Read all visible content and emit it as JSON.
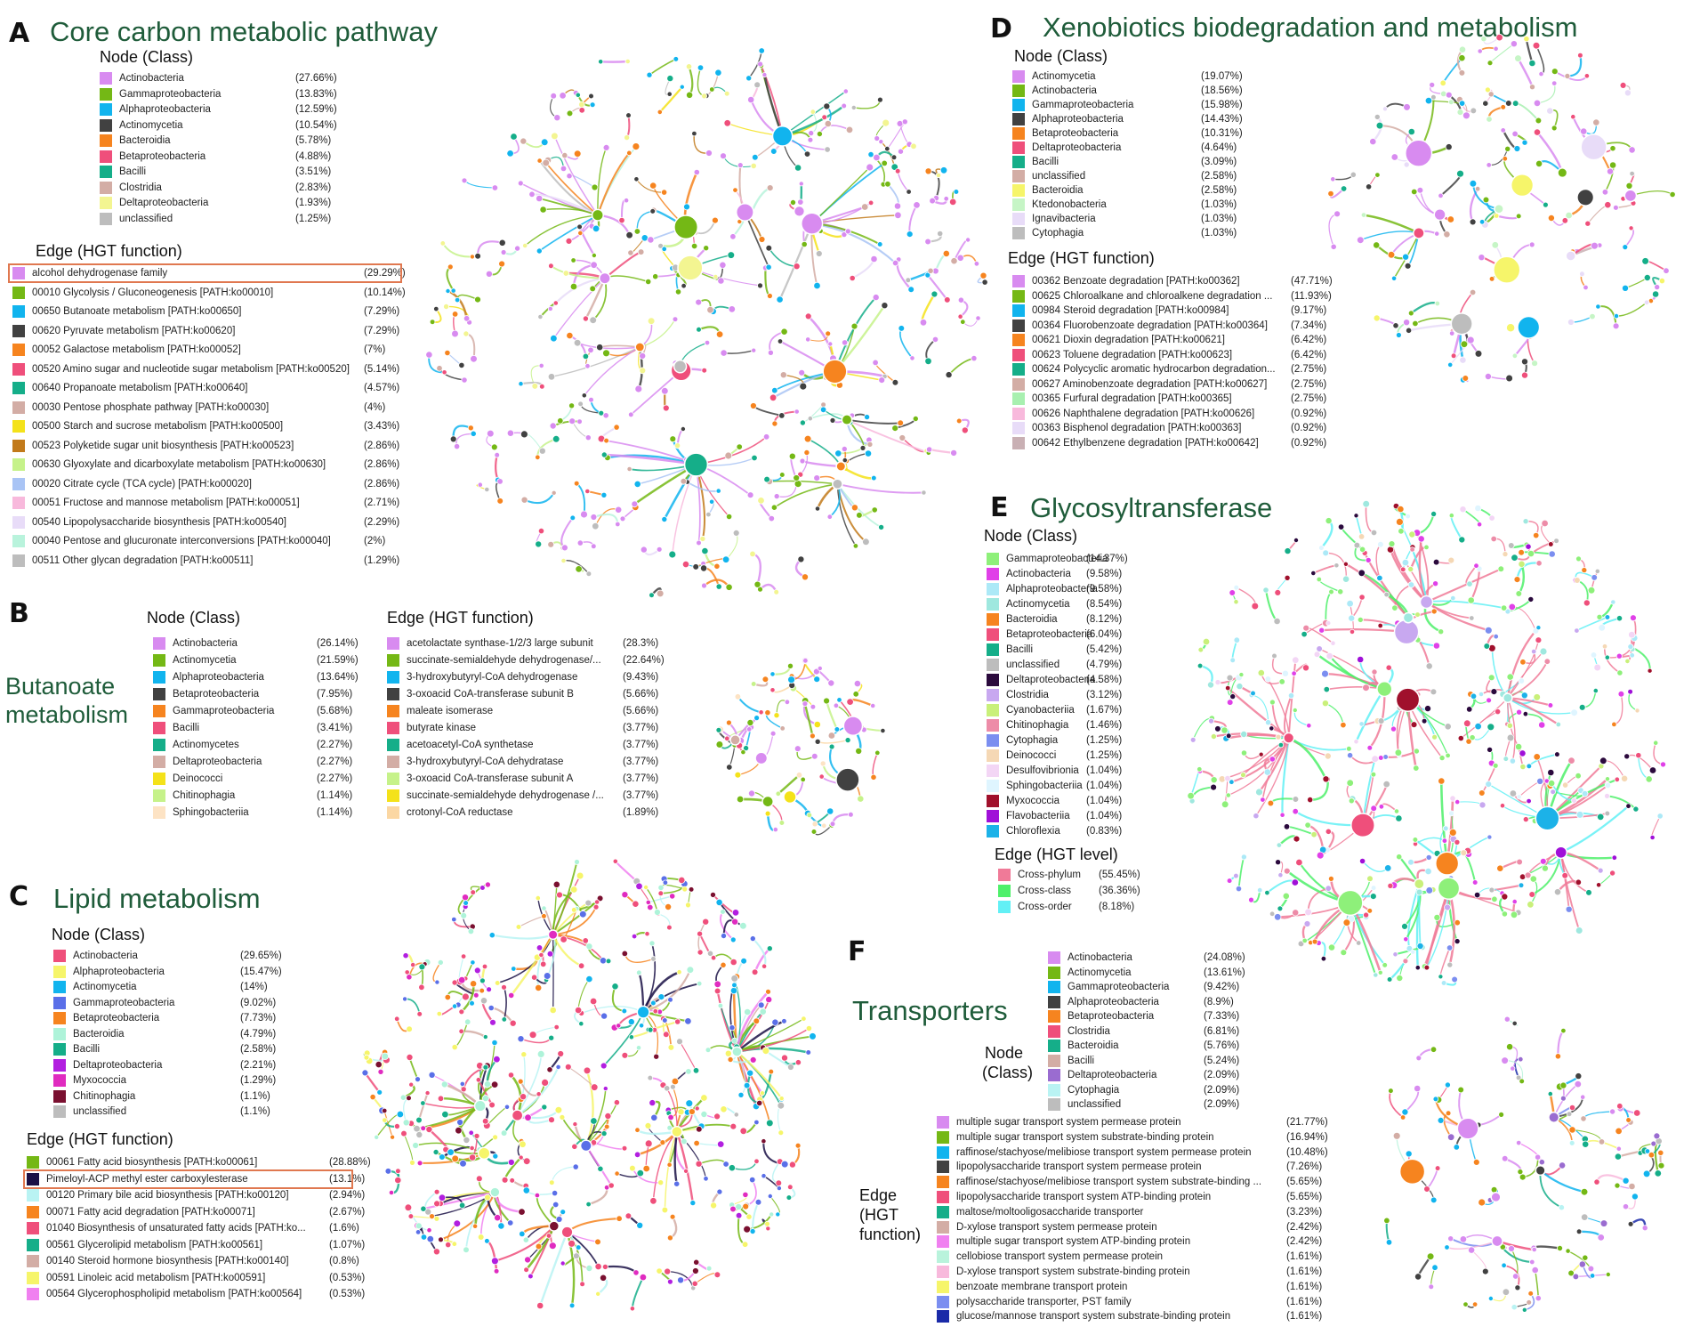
{
  "panels": {
    "A": {
      "letter": "A",
      "title": "Core carbon metabolic pathway",
      "node_head": "Node (Class)",
      "edge_head": "Edge (HGT function)",
      "nodes": [
        {
          "label": "Actinobacteria",
          "pct": "(27.66%)",
          "color": "#d88bf0"
        },
        {
          "label": "Gammaproteobacteria",
          "pct": "(13.83%)",
          "color": "#74b815"
        },
        {
          "label": "Alphaproteobacteria",
          "pct": "(12.59%)",
          "color": "#11b4ee"
        },
        {
          "label": "Actinomycetia",
          "pct": "(10.54%)",
          "color": "#414141"
        },
        {
          "label": "Bacteroidia",
          "pct": "(5.78%)",
          "color": "#f6841f"
        },
        {
          "label": "Betaproteobacteria",
          "pct": "(4.88%)",
          "color": "#ef4f7b"
        },
        {
          "label": "Bacilli",
          "pct": "(3.51%)",
          "color": "#15ae89"
        },
        {
          "label": "Clostridia",
          "pct": "(2.83%)",
          "color": "#d3ada5"
        },
        {
          "label": "Deltaproteobacteria",
          "pct": "(1.93%)",
          "color": "#f3f591"
        },
        {
          "label": "unclassified",
          "pct": "(1.25%)",
          "color": "#bdbdbd"
        }
      ],
      "edges": [
        {
          "label": "alcohol dehydrogenase family",
          "pct": "(29.29%)",
          "color": "#d88bf0"
        },
        {
          "label": "00010 Glycolysis / Gluconeogenesis [PATH:ko00010]",
          "pct": "(10.14%)",
          "color": "#74b815"
        },
        {
          "label": "00650 Butanoate metabolism [PATH:ko00650]",
          "pct": "(7.29%)",
          "color": "#11b4ee"
        },
        {
          "label": "00620 Pyruvate metabolism [PATH:ko00620]",
          "pct": "(7.29%)",
          "color": "#414141"
        },
        {
          "label": "00052 Galactose metabolism [PATH:ko00052]",
          "pct": "(7%)",
          "color": "#f6841f"
        },
        {
          "label": "00520 Amino sugar and nucleotide sugar metabolism [PATH:ko00520]",
          "pct": "(5.14%)",
          "color": "#ef4f7b"
        },
        {
          "label": "00640 Propanoate metabolism [PATH:ko00640]",
          "pct": "(4.57%)",
          "color": "#15ae89"
        },
        {
          "label": "00030 Pentose phosphate pathway [PATH:ko00030]",
          "pct": "(4%)",
          "color": "#d3ada5"
        },
        {
          "label": "00500 Starch and sucrose metabolism [PATH:ko00500]",
          "pct": "(3.43%)",
          "color": "#f4e21a"
        },
        {
          "label": "00523 Polyketide sugar unit biosynthesis [PATH:ko00523]",
          "pct": "(2.86%)",
          "color": "#c27a1b"
        },
        {
          "label": "00630 Glyoxylate and dicarboxylate metabolism [PATH:ko00630]",
          "pct": "(2.86%)",
          "color": "#c6f28a"
        },
        {
          "label": "00020 Citrate cycle (TCA cycle) [PATH:ko00020]",
          "pct": "(2.86%)",
          "color": "#a9c4f5"
        },
        {
          "label": "00051 Fructose and mannose metabolism [PATH:ko00051]",
          "pct": "(2.71%)",
          "color": "#f8b9dc"
        },
        {
          "label": "00540 Lipopolysaccharide biosynthesis [PATH:ko00540]",
          "pct": "(2.29%)",
          "color": "#e8dcf8"
        },
        {
          "label": "00040 Pentose and glucuronate interconversions [PATH:ko00040]",
          "pct": "(2%)",
          "color": "#b9f3dc"
        },
        {
          "label": "00511 Other glycan degradation [PATH:ko00511]",
          "pct": "(1.29%)",
          "color": "#bdbdbd"
        }
      ]
    },
    "B": {
      "letter": "B",
      "title": "Butanoate metabolism",
      "title_line1": "Butanoate",
      "title_line2": "metabolism",
      "node_head": "Node (Class)",
      "edge_head": "Edge (HGT function)",
      "nodes": [
        {
          "label": "Actinobacteria",
          "pct": "(26.14%)",
          "color": "#d88bf0"
        },
        {
          "label": "Actinomycetia",
          "pct": "(21.59%)",
          "color": "#74b815"
        },
        {
          "label": "Alphaproteobacteria",
          "pct": "(13.64%)",
          "color": "#11b4ee"
        },
        {
          "label": "Betaproteobacteria",
          "pct": "(7.95%)",
          "color": "#414141"
        },
        {
          "label": "Gammaproteobacteria",
          "pct": "(5.68%)",
          "color": "#f6841f"
        },
        {
          "label": "Bacilli",
          "pct": "(3.41%)",
          "color": "#ef4f7b"
        },
        {
          "label": "Actinomycetes",
          "pct": "(2.27%)",
          "color": "#15ae89"
        },
        {
          "label": "Deltaproteobacteria",
          "pct": "(2.27%)",
          "color": "#d3ada5"
        },
        {
          "label": "Deinococci",
          "pct": "(2.27%)",
          "color": "#f4e21a"
        },
        {
          "label": "Chitinophagia",
          "pct": "(1.14%)",
          "color": "#c6f28a"
        },
        {
          "label": "Sphingobacteriia",
          "pct": "(1.14%)",
          "color": "#fde3c4"
        }
      ],
      "edges": [
        {
          "label": "acetolactate synthase-1/2/3 large subunit",
          "pct": "(28.3%)",
          "color": "#d88bf0"
        },
        {
          "label": "succinate-semialdehyde dehydrogenase/...",
          "pct": "(22.64%)",
          "color": "#74b815"
        },
        {
          "label": "3-hydroxybutyryl-CoA dehydrogenase",
          "pct": "(9.43%)",
          "color": "#11b4ee"
        },
        {
          "label": "3-oxoacid CoA-transferase subunit B",
          "pct": "(5.66%)",
          "color": "#414141"
        },
        {
          "label": "maleate isomerase",
          "pct": "(5.66%)",
          "color": "#f6841f"
        },
        {
          "label": "butyrate kinase",
          "pct": "(3.77%)",
          "color": "#ef4f7b"
        },
        {
          "label": "acetoacetyl-CoA synthetase",
          "pct": "(3.77%)",
          "color": "#15ae89"
        },
        {
          "label": "3-hydroxybutyryl-CoA dehydratase",
          "pct": "(3.77%)",
          "color": "#d3ada5"
        },
        {
          "label": "3-oxoacid CoA-transferase subunit A",
          "pct": "(3.77%)",
          "color": "#c6f28a"
        },
        {
          "label": "succinate-semialdehyde dehydrogenase /...",
          "pct": "(3.77%)",
          "color": "#f4e21a"
        },
        {
          "label": "crotonyl-CoA reductase",
          "pct": "(1.89%)",
          "color": "#fbd7a3"
        }
      ]
    },
    "C": {
      "letter": "C",
      "title": "Lipid metabolism",
      "node_head": "Node (Class)",
      "edge_head": "Edge (HGT function)",
      "nodes": [
        {
          "label": "Actinobacteria",
          "pct": "(29.65%)",
          "color": "#ef4f7b"
        },
        {
          "label": "Alphaproteobacteria",
          "pct": "(15.47%)",
          "color": "#f6f56a"
        },
        {
          "label": "Actinomycetia",
          "pct": "(14%)",
          "color": "#11b4ee"
        },
        {
          "label": "Gammaproteobacteria",
          "pct": "(9.02%)",
          "color": "#5a6fe8"
        },
        {
          "label": "Betaproteobacteria",
          "pct": "(7.73%)",
          "color": "#f6841f"
        },
        {
          "label": "Bacteroidia",
          "pct": "(4.79%)",
          "color": "#aef3d9"
        },
        {
          "label": "Bacilli",
          "pct": "(2.58%)",
          "color": "#15ae89"
        },
        {
          "label": "Deltaproteobacteria",
          "pct": "(2.21%)",
          "color": "#b21fe0"
        },
        {
          "label": "Myxococcia",
          "pct": "(1.29%)",
          "color": "#e02bc0"
        },
        {
          "label": "Chitinophagia",
          "pct": "(1.1%)",
          "color": "#7a1030"
        },
        {
          "label": "unclassified",
          "pct": "(1.1%)",
          "color": "#bdbdbd"
        }
      ],
      "edges": [
        {
          "label": "00061 Fatty acid biosynthesis [PATH:ko00061]",
          "pct": "(28.88%)",
          "color": "#74b815"
        },
        {
          "label": "Pimeloyl-ACP methyl ester carboxylesterase",
          "pct": "(13.1%)",
          "color": "#1a1045"
        },
        {
          "label": "00120 Primary bile acid biosynthesis [PATH:ko00120]",
          "pct": "(2.94%)",
          "color": "#b9f3f3"
        },
        {
          "label": "00071 Fatty acid degradation [PATH:ko00071]",
          "pct": "(2.67%)",
          "color": "#f6841f"
        },
        {
          "label": "01040 Biosynthesis of unsaturated fatty acids [PATH:ko...",
          "pct": "(1.6%)",
          "color": "#ef4f7b"
        },
        {
          "label": "00561 Glycerolipid metabolism [PATH:ko00561]",
          "pct": "(1.07%)",
          "color": "#15ae89"
        },
        {
          "label": "00140 Steroid hormone biosynthesis [PATH:ko00140]",
          "pct": "(0.8%)",
          "color": "#d3ada5"
        },
        {
          "label": "00591 Linoleic acid metabolism [PATH:ko00591]",
          "pct": "(0.53%)",
          "color": "#f6f56a"
        },
        {
          "label": "00564 Glycerophospholipid metabolism [PATH:ko00564]",
          "pct": "(0.53%)",
          "color": "#f080f0"
        }
      ]
    },
    "D": {
      "letter": "D",
      "title": "Xenobiotics biodegradation and metabolism",
      "node_head": "Node (Class)",
      "edge_head": "Edge (HGT function)",
      "nodes": [
        {
          "label": "Actinomycetia",
          "pct": "(19.07%)",
          "color": "#d88bf0"
        },
        {
          "label": "Actinobacteria",
          "pct": "(18.56%)",
          "color": "#74b815"
        },
        {
          "label": "Gammaproteobacteria",
          "pct": "(15.98%)",
          "color": "#11b4ee"
        },
        {
          "label": "Alphaproteobacteria",
          "pct": "(14.43%)",
          "color": "#414141"
        },
        {
          "label": "Betaproteobacteria",
          "pct": "(10.31%)",
          "color": "#f6841f"
        },
        {
          "label": "Deltaproteobacteria",
          "pct": "(4.64%)",
          "color": "#ef4f7b"
        },
        {
          "label": "Bacilli",
          "pct": "(3.09%)",
          "color": "#15ae89"
        },
        {
          "label": "unclassified",
          "pct": "(2.58%)",
          "color": "#d3ada5"
        },
        {
          "label": "Bacteroidia",
          "pct": "(2.58%)",
          "color": "#f6f56a"
        },
        {
          "label": "Ktedonobacteria",
          "pct": "(1.03%)",
          "color": "#c6f5c6"
        },
        {
          "label": "Ignavibacteria",
          "pct": "(1.03%)",
          "color": "#e8dcf8"
        },
        {
          "label": "Cytophagia",
          "pct": "(1.03%)",
          "color": "#bdbdbd"
        }
      ],
      "edges": [
        {
          "label": "00362 Benzoate degradation [PATH:ko00362]",
          "pct": "(47.71%)",
          "color": "#d88bf0"
        },
        {
          "label": "00625 Chloroalkane and chloroalkene degradation ...",
          "pct": "(11.93%)",
          "color": "#74b815"
        },
        {
          "label": "00984 Steroid degradation [PATH:ko00984]",
          "pct": "(9.17%)",
          "color": "#11b4ee"
        },
        {
          "label": "00364 Fluorobenzoate degradation [PATH:ko00364]",
          "pct": "(7.34%)",
          "color": "#414141"
        },
        {
          "label": "00621 Dioxin degradation [PATH:ko00621]",
          "pct": "(6.42%)",
          "color": "#f6841f"
        },
        {
          "label": "00623 Toluene degradation [PATH:ko00623]",
          "pct": "(6.42%)",
          "color": "#ef4f7b"
        },
        {
          "label": "00624 Polycyclic aromatic hydrocarbon degradation...",
          "pct": "(2.75%)",
          "color": "#15ae89"
        },
        {
          "label": "00627 Aminobenzoate degradation [PATH:ko00627]",
          "pct": "(2.75%)",
          "color": "#d3ada5"
        },
        {
          "label": "00365 Furfural degradation [PATH:ko00365]",
          "pct": "(2.75%)",
          "color": "#a8f0b0"
        },
        {
          "label": "00626 Naphthalene degradation [PATH:ko00626]",
          "pct": "(0.92%)",
          "color": "#f8b9dc"
        },
        {
          "label": "00363 Bisphenol degradation [PATH:ko00363]",
          "pct": "(0.92%)",
          "color": "#e8dcf8"
        },
        {
          "label": "00642 Ethylbenzene degradation [PATH:ko00642]",
          "pct": "(0.92%)",
          "color": "#c9b0b4"
        }
      ]
    },
    "E": {
      "letter": "E",
      "title": "Glycosyltransferase",
      "node_head": "Node (Class)",
      "edge_head": "Edge (HGT level)",
      "nodes": [
        {
          "label": "Gammaproteobacteria",
          "pct": "(14.37%)",
          "color": "#8ef07a"
        },
        {
          "label": "Actinobacteria",
          "pct": "(9.58%)",
          "color": "#e040e8"
        },
        {
          "label": "Alphaproteobacteria",
          "pct": "(9.58%)",
          "color": "#ace9f7"
        },
        {
          "label": "Actinomycetia",
          "pct": "(8.54%)",
          "color": "#9fe8df"
        },
        {
          "label": "Bacteroidia",
          "pct": "(8.12%)",
          "color": "#f6841f"
        },
        {
          "label": "Betaproteobacteria",
          "pct": "(6.04%)",
          "color": "#ef4f7b"
        },
        {
          "label": "Bacilli",
          "pct": "(5.42%)",
          "color": "#15ae89"
        },
        {
          "label": "unclassified",
          "pct": "(4.79%)",
          "color": "#bdbdbd"
        },
        {
          "label": "Deltaproteobacteria",
          "pct": "(4.58%)",
          "color": "#2b0a3d"
        },
        {
          "label": "Clostridia",
          "pct": "(3.12%)",
          "color": "#c8a8f0"
        },
        {
          "label": "Cyanobacteriia",
          "pct": "(1.67%)",
          "color": "#c9f07a"
        },
        {
          "label": "Chitinophagia",
          "pct": "(1.46%)",
          "color": "#ed8ca8"
        },
        {
          "label": "Cytophagia",
          "pct": "(1.25%)",
          "color": "#7b8ef0"
        },
        {
          "label": "Deinococci",
          "pct": "(1.25%)",
          "color": "#f5d8b5"
        },
        {
          "label": "Desulfovibrionia",
          "pct": "(1.04%)",
          "color": "#f3d6f5"
        },
        {
          "label": "Sphingobacteriia",
          "pct": "(1.04%)",
          "color": "#dff5ff"
        },
        {
          "label": "Myxococcia",
          "pct": "(1.04%)",
          "color": "#a0102c"
        },
        {
          "label": "Flavobacteriia",
          "pct": "(1.04%)",
          "color": "#a010d8"
        },
        {
          "label": "Chloroflexia",
          "pct": "(0.83%)",
          "color": "#1cb2e8"
        }
      ],
      "edges": [
        {
          "label": "Cross-phylum",
          "pct": "(55.45%)",
          "color": "#f07a98"
        },
        {
          "label": "Cross-class",
          "pct": "(36.36%)",
          "color": "#4ef06a"
        },
        {
          "label": "Cross-order",
          "pct": "(8.18%)",
          "color": "#62f0f5"
        }
      ]
    },
    "F": {
      "letter": "F",
      "title": "Transporters",
      "node_head_line1": "Node",
      "node_head_line2": "(Class)",
      "edge_head_line1": "Edge",
      "edge_head_line2": "(HGT",
      "edge_head_line3": "function)",
      "nodes": [
        {
          "label": "Actinobacteria",
          "pct": "(24.08%)",
          "color": "#d88bf0"
        },
        {
          "label": "Actinomycetia",
          "pct": "(13.61%)",
          "color": "#74b815"
        },
        {
          "label": "Gammaproteobacteria",
          "pct": "(9.42%)",
          "color": "#11b4ee"
        },
        {
          "label": "Alphaproteobacteria",
          "pct": "(8.9%)",
          "color": "#414141"
        },
        {
          "label": "Betaproteobacteria",
          "pct": "(7.33%)",
          "color": "#f6841f"
        },
        {
          "label": "Clostridia",
          "pct": "(6.81%)",
          "color": "#ef4f7b"
        },
        {
          "label": "Bacteroidia",
          "pct": "(5.76%)",
          "color": "#15ae89"
        },
        {
          "label": "Bacilli",
          "pct": "(5.24%)",
          "color": "#d3ada5"
        },
        {
          "label": "Deltaproteobacteria",
          "pct": "(2.09%)",
          "color": "#9a6cd0"
        },
        {
          "label": "Cytophagia",
          "pct": "(2.09%)",
          "color": "#b9f3f3"
        },
        {
          "label": "unclassified",
          "pct": "(2.09%)",
          "color": "#bdbdbd"
        }
      ],
      "edges": [
        {
          "label": "multiple sugar transport system permease protein",
          "pct": "(21.77%)",
          "color": "#d88bf0"
        },
        {
          "label": "multiple sugar transport system substrate-binding protein",
          "pct": "(16.94%)",
          "color": "#74b815"
        },
        {
          "label": "raffinose/stachyose/melibiose transport system permease protein",
          "pct": "(10.48%)",
          "color": "#11b4ee"
        },
        {
          "label": "lipopolysaccharide transport system permease protein",
          "pct": "(7.26%)",
          "color": "#414141"
        },
        {
          "label": "raffinose/stachyose/melibiose transport system substrate-binding ...",
          "pct": "(5.65%)",
          "color": "#f6841f"
        },
        {
          "label": "lipopolysaccharide transport system ATP-binding protein",
          "pct": "(5.65%)",
          "color": "#ef4f7b"
        },
        {
          "label": "maltose/moltooligosaccharide transporter",
          "pct": "(3.23%)",
          "color": "#15ae89"
        },
        {
          "label": "D-xylose transport system permease protein",
          "pct": "(2.42%)",
          "color": "#d3ada5"
        },
        {
          "label": "multiple sugar transport system ATP-binding protein",
          "pct": "(2.42%)",
          "color": "#f080f0"
        },
        {
          "label": "cellobiose transport system permease protein",
          "pct": "(1.61%)",
          "color": "#b9f3dc"
        },
        {
          "label": "D-xylose transport system substrate-binding protein",
          "pct": "(1.61%)",
          "color": "#f8b9dc"
        },
        {
          "label": "benzoate membrane transport protein",
          "pct": "(1.61%)",
          "color": "#f6f56a"
        },
        {
          "label": "polysaccharide transporter, PST family",
          "pct": "(1.61%)",
          "color": "#7b8ef0"
        },
        {
          "label": "glucose/mannose transport system substrate-binding protein",
          "pct": "(1.61%)",
          "color": "#1a2aa8"
        }
      ]
    }
  }
}
